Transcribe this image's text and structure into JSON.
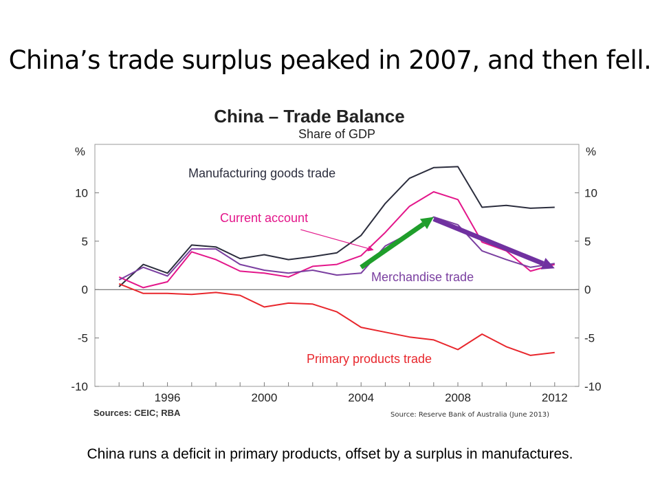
{
  "slide": {
    "title": "China’s trade surplus peaked in 2007, and then fell.",
    "caption": "China runs a deficit in primary products, offset by a surplus in manufactures.",
    "source_note": "Source: Reserve Bank of Australia (June 2013)"
  },
  "chart_data": {
    "type": "line",
    "title": "China – Trade Balance",
    "subtitle": "Share of GDP",
    "ylabel_left": "%",
    "ylabel_right": "%",
    "ylim": [
      -10,
      15
    ],
    "yticks": [
      -10,
      -5,
      0,
      5,
      10
    ],
    "xlim": [
      1993,
      2013
    ],
    "xticks": [
      1996,
      2000,
      2004,
      2008,
      2012
    ],
    "sources": "Sources: CEIC; RBA",
    "x": [
      1994,
      1995,
      1996,
      1997,
      1998,
      1999,
      2000,
      2001,
      2002,
      2003,
      2004,
      2005,
      2006,
      2007,
      2008,
      2009,
      2010,
      2011,
      2012
    ],
    "series": [
      {
        "name": "Manufacturing goods trade",
        "color": "#2b2d3d",
        "values": [
          0.3,
          2.6,
          1.7,
          4.6,
          4.4,
          3.2,
          3.6,
          3.1,
          3.4,
          3.8,
          5.6,
          8.9,
          11.5,
          12.6,
          12.7,
          8.5,
          8.7,
          8.4,
          8.5
        ]
      },
      {
        "name": "Current account",
        "color": "#e3168a",
        "values": [
          1.3,
          0.2,
          0.8,
          3.9,
          3.1,
          1.9,
          1.7,
          1.3,
          2.4,
          2.6,
          3.5,
          5.9,
          8.6,
          10.1,
          9.3,
          4.9,
          4.0,
          1.9,
          2.6
        ]
      },
      {
        "name": "Merchandise trade",
        "color": "#7a3fa0",
        "values": [
          1.0,
          2.3,
          1.4,
          4.2,
          4.2,
          2.6,
          2.0,
          1.7,
          2.0,
          1.5,
          1.7,
          4.5,
          5.8,
          7.5,
          6.7,
          4.0,
          3.1,
          2.3,
          2.7
        ]
      },
      {
        "name": "Primary products trade",
        "color": "#e8262c",
        "values": [
          0.6,
          -0.4,
          -0.4,
          -0.5,
          -0.3,
          -0.6,
          -1.8,
          -1.4,
          -1.5,
          -2.3,
          -3.9,
          -4.4,
          -4.9,
          -5.2,
          -6.2,
          -4.6,
          -5.9,
          -6.8,
          -6.5
        ]
      }
    ],
    "annotations": {
      "rise_arrow": {
        "from": [
          2004,
          2.3
        ],
        "to": [
          2007,
          7.5
        ],
        "color": "#1f9e2b"
      },
      "fall_arrow": {
        "from": [
          2007,
          7.3
        ],
        "to": [
          2012,
          2.2
        ],
        "color": "#7031a0"
      },
      "pointer_arrow": {
        "from": [
          2001.5,
          6.2
        ],
        "to": [
          2004.5,
          4.1
        ],
        "color": "#e3168a"
      }
    }
  }
}
